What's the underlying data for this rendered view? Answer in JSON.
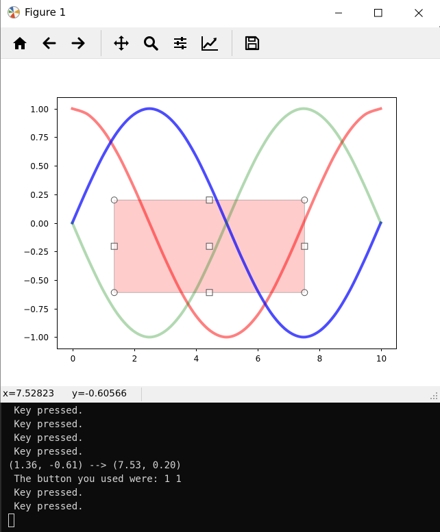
{
  "window": {
    "title": "Figure 1"
  },
  "toolbar": {
    "buttons": [
      {
        "name": "home-icon"
      },
      {
        "name": "back-icon"
      },
      {
        "name": "forward-icon"
      },
      {
        "name": "pan-icon"
      },
      {
        "name": "zoom-icon"
      },
      {
        "name": "configure-subplots-icon"
      },
      {
        "name": "edit-axis-icon"
      },
      {
        "name": "save-icon"
      }
    ]
  },
  "status": {
    "x_text": "x=7.52823",
    "y_text": "y=-0.60566"
  },
  "terminal": {
    "lines": [
      " Key pressed.",
      " Key pressed.",
      " Key pressed.",
      " Key pressed.",
      "(1.36, -0.61) --> (7.53, 0.20)",
      " The button you used were: 1 1",
      " Key pressed.",
      " Key pressed."
    ]
  },
  "chart_data": {
    "type": "line",
    "title": "",
    "xlabel": "",
    "ylabel": "",
    "xlim": [
      -0.5,
      10.5
    ],
    "ylim": [
      -1.1,
      1.1
    ],
    "xticks": [
      0,
      2,
      4,
      6,
      8,
      10
    ],
    "xtick_labels": [
      "0",
      "2",
      "4",
      "6",
      "8",
      "10"
    ],
    "yticks": [
      1.0,
      0.75,
      0.5,
      0.25,
      0.0,
      -0.25,
      -0.5,
      -0.75,
      -1.0
    ],
    "ytick_labels": [
      "1.00",
      "0.75",
      "0.50",
      "0.25",
      "0.00",
      "−0.25",
      "−0.50",
      "−0.75",
      "−1.00"
    ],
    "grid": false,
    "series": [
      {
        "color": "#ff0000",
        "opacity": 0.5,
        "x": [
          0,
          0.5,
          1,
          1.5,
          2,
          2.5,
          3,
          3.5,
          4,
          4.5,
          5,
          5.5,
          6,
          6.5,
          7,
          7.5,
          8,
          8.5,
          9,
          9.5,
          10
        ],
        "y": [
          1.0,
          0.95,
          0.81,
          0.59,
          0.31,
          0.0,
          -0.31,
          -0.59,
          -0.81,
          -0.95,
          -1.0,
          -0.95,
          -0.81,
          -0.59,
          -0.31,
          0.0,
          0.31,
          0.59,
          0.81,
          0.95,
          1.0
        ]
      },
      {
        "color": "#0000ff",
        "opacity": 0.7,
        "x": [
          0,
          0.5,
          1,
          1.5,
          2,
          2.5,
          3,
          3.5,
          4,
          4.5,
          5,
          5.5,
          6,
          6.5,
          7,
          7.5,
          8,
          8.5,
          9,
          9.5,
          10
        ],
        "y": [
          0.0,
          0.31,
          0.59,
          0.81,
          0.95,
          1.0,
          0.95,
          0.81,
          0.59,
          0.31,
          0.0,
          -0.31,
          -0.59,
          -0.81,
          -0.95,
          -1.0,
          -0.95,
          -0.81,
          -0.59,
          -0.31,
          0.0
        ]
      },
      {
        "color": "#008000",
        "opacity": 0.3,
        "x": [
          0,
          0.5,
          1,
          1.5,
          2,
          2.5,
          3,
          3.5,
          4,
          4.5,
          5,
          5.5,
          6,
          6.5,
          7,
          7.5,
          8,
          8.5,
          9,
          9.5,
          10
        ],
        "y": [
          0.0,
          -0.31,
          -0.59,
          -0.81,
          -0.95,
          -1.0,
          -0.95,
          -0.81,
          -0.59,
          -0.31,
          0.0,
          0.31,
          0.59,
          0.81,
          0.95,
          1.0,
          0.95,
          0.81,
          0.59,
          0.31,
          0.0
        ]
      }
    ],
    "selection_rectangle": {
      "x": [
        1.36,
        7.53
      ],
      "y": [
        -0.61,
        0.2
      ],
      "fill": "#ff0000",
      "fill_opacity": 0.2,
      "corner_handles": "circle",
      "edge_handles": "square"
    }
  }
}
